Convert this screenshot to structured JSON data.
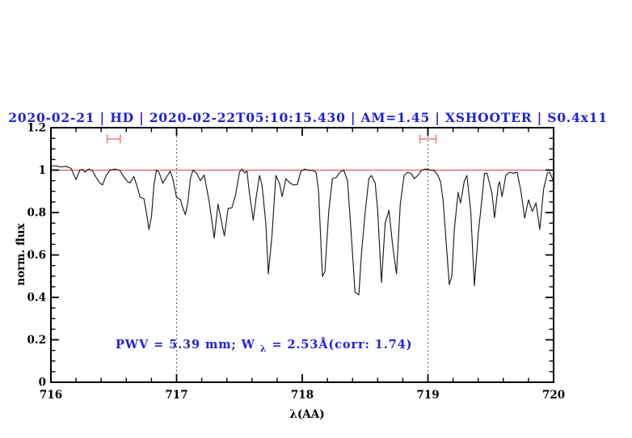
{
  "title": "2020-02-21 | HD | 2020-02-22T05:10:15.430 | AM=1.45 | XSHOOTER | S0.4x11",
  "annotation": {
    "part1": "PWV = 5.39 mm; W",
    "subscript": "λ",
    "part2": " = 2.53Å(corr: 1.74)"
  },
  "colors": {
    "title_blue": "#2020dd",
    "annotation_blue": "#2020dd",
    "continuum_red": "#e06060",
    "marker_red": "#ec8585",
    "spectrum_black": "#1c1c1c",
    "dotted_gray": "#3a3a3a",
    "frame_black": "#000000"
  },
  "chart_data": {
    "type": "line",
    "title": "2020-02-21 | HD | 2020-02-22T05:10:15.430 | AM=1.45 | XSHOOTER | S0.4x11",
    "xlabel": "λ(AA)",
    "ylabel": "norm. flux",
    "xlim": [
      716,
      720
    ],
    "ylim": [
      0,
      1.2
    ],
    "grid": "off",
    "legend": "none",
    "x_tick_values": [
      716,
      717,
      718,
      719,
      720
    ],
    "x_tick_labels": [
      "716",
      "717",
      "718",
      "719",
      "720"
    ],
    "x_minor_step": 0.2,
    "y_tick_values": [
      0,
      0.2,
      0.4,
      0.6,
      0.8,
      1,
      1.2
    ],
    "y_tick_labels": [
      "0",
      "0.2",
      "0.4",
      "0.6",
      "0.8",
      "1",
      "1.2"
    ],
    "y_minor_step": 0.05,
    "reference_lines": {
      "continuum_flux": 1.0,
      "vertical_dotted_wavelengths": [
        717,
        719
      ]
    },
    "band_markers": [
      {
        "center": 716.5,
        "half_width": 0.052,
        "flux_level": 1.147
      },
      {
        "center": 719.0,
        "half_width": 0.064,
        "flux_level": 1.147
      }
    ],
    "series": [
      {
        "name": "normalized spectrum",
        "x": [
          716.0,
          716.04,
          716.08,
          716.12,
          716.16,
          716.2,
          716.23,
          716.25,
          716.27,
          716.3,
          716.33,
          716.36,
          716.39,
          716.41,
          716.44,
          716.47,
          716.51,
          716.55,
          716.58,
          716.61,
          716.63,
          716.66,
          716.69,
          716.71,
          716.74,
          716.76,
          716.78,
          716.8,
          716.82,
          716.84,
          716.86,
          716.89,
          716.92,
          716.95,
          716.97,
          717.0,
          717.03,
          717.05,
          717.07,
          717.09,
          717.11,
          717.13,
          717.16,
          717.19,
          717.22,
          717.26,
          717.3,
          717.33,
          717.35,
          717.38,
          717.41,
          717.44,
          717.47,
          717.5,
          717.52,
          717.54,
          717.56,
          717.58,
          717.61,
          717.63,
          717.66,
          717.68,
          717.71,
          717.73,
          717.76,
          717.79,
          717.82,
          717.84,
          717.87,
          717.9,
          717.93,
          717.96,
          717.99,
          718.02,
          718.05,
          718.08,
          718.11,
          718.13,
          718.16,
          718.18,
          718.21,
          718.24,
          718.27,
          718.3,
          718.33,
          718.36,
          718.39,
          718.42,
          718.45,
          718.47,
          718.5,
          718.53,
          718.55,
          718.58,
          718.6,
          718.63,
          718.66,
          718.69,
          718.72,
          718.75,
          718.78,
          718.81,
          718.84,
          718.87,
          718.89,
          718.92,
          718.95,
          718.98,
          719.02,
          719.05,
          719.08,
          719.1,
          719.12,
          719.14,
          719.17,
          719.19,
          719.21,
          719.24,
          719.26,
          719.29,
          719.31,
          719.34,
          719.37,
          719.4,
          719.42,
          719.45,
          719.47,
          719.51,
          719.53,
          719.56,
          719.57,
          719.59,
          719.62,
          719.65,
          719.68,
          719.71,
          719.74,
          719.77,
          719.8,
          719.83,
          719.86,
          719.89,
          719.92,
          719.95,
          719.97,
          720.0
        ],
        "y": [
          1.02,
          1.02,
          1.015,
          1.018,
          1.008,
          0.955,
          1.0,
          1.004,
          0.99,
          1.005,
          0.998,
          0.965,
          0.94,
          0.93,
          0.975,
          1.0,
          1.005,
          0.998,
          0.968,
          0.945,
          0.94,
          0.97,
          0.915,
          0.872,
          0.865,
          0.8,
          0.72,
          0.78,
          0.93,
          1.0,
          0.99,
          0.938,
          0.968,
          0.995,
          0.96,
          0.87,
          0.862,
          0.82,
          0.79,
          0.85,
          0.96,
          1.0,
          0.985,
          0.95,
          0.977,
          0.85,
          0.68,
          0.84,
          0.78,
          0.69,
          0.82,
          0.822,
          0.885,
          0.99,
          1.005,
          0.988,
          0.995,
          0.89,
          0.763,
          0.86,
          0.975,
          0.93,
          0.75,
          0.51,
          0.7,
          0.975,
          0.935,
          0.875,
          0.96,
          0.94,
          0.93,
          0.932,
          0.995,
          1.005,
          0.998,
          1.0,
          0.99,
          0.9,
          0.5,
          0.52,
          0.8,
          0.96,
          0.965,
          0.99,
          1.0,
          0.95,
          0.7,
          0.424,
          0.412,
          0.6,
          0.8,
          0.96,
          0.975,
          0.94,
          0.81,
          0.47,
          0.75,
          0.81,
          0.64,
          0.51,
          0.84,
          0.975,
          0.99,
          0.982,
          0.96,
          0.975,
          1.0,
          1.005,
          1.0,
          0.998,
          0.975,
          0.945,
          0.86,
          0.7,
          0.46,
          0.5,
          0.72,
          0.895,
          0.845,
          0.95,
          0.975,
          0.81,
          0.455,
          0.7,
          0.81,
          0.985,
          0.985,
          0.89,
          0.775,
          0.93,
          0.945,
          0.875,
          0.975,
          0.99,
          0.985,
          0.99,
          0.9,
          0.773,
          0.86,
          0.805,
          0.845,
          0.72,
          0.91,
          0.985,
          0.99,
          0.945
        ]
      }
    ]
  }
}
